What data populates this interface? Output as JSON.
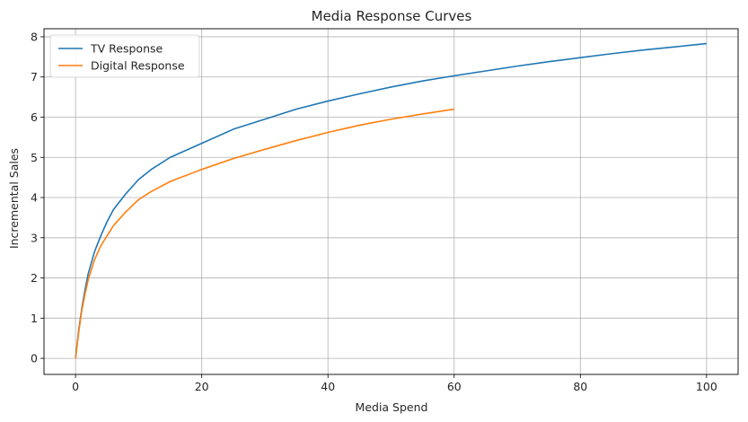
{
  "chart_data": {
    "type": "line",
    "title": "Media Response Curves",
    "xlabel": "Media Spend",
    "ylabel": "Incremental Sales",
    "xlim": [
      -5,
      105
    ],
    "ylim": [
      -0.4,
      8.2
    ],
    "x_ticks": [
      0,
      20,
      40,
      60,
      80,
      100
    ],
    "y_ticks": [
      0,
      1,
      2,
      3,
      4,
      5,
      6,
      7,
      8
    ],
    "grid": true,
    "legend_position": "top-left",
    "series": [
      {
        "name": "TV Response",
        "color": "#1f77b4",
        "x": [
          0,
          0.5,
          1,
          1.5,
          2,
          3,
          4,
          5,
          6,
          8,
          10,
          12,
          15,
          20,
          25,
          30,
          35,
          40,
          45,
          50,
          55,
          60,
          65,
          70,
          75,
          80,
          85,
          90,
          95,
          100
        ],
        "y": [
          0,
          0.7,
          1.25,
          1.7,
          2.1,
          2.65,
          3.05,
          3.4,
          3.7,
          4.1,
          4.45,
          4.7,
          5.0,
          5.35,
          5.7,
          5.95,
          6.2,
          6.4,
          6.58,
          6.75,
          6.9,
          7.03,
          7.15,
          7.27,
          7.38,
          7.48,
          7.58,
          7.67,
          7.75,
          7.83
        ]
      },
      {
        "name": "Digital Response",
        "color": "#ff7f0e",
        "x": [
          0,
          0.5,
          1,
          1.5,
          2,
          3,
          4,
          5,
          6,
          8,
          10,
          12,
          15,
          20,
          25,
          30,
          35,
          40,
          45,
          50,
          55,
          60
        ],
        "y": [
          0,
          0.65,
          1.2,
          1.6,
          1.95,
          2.45,
          2.8,
          3.05,
          3.3,
          3.65,
          3.95,
          4.15,
          4.4,
          4.7,
          4.97,
          5.2,
          5.42,
          5.62,
          5.8,
          5.95,
          6.08,
          6.2
        ]
      }
    ]
  }
}
